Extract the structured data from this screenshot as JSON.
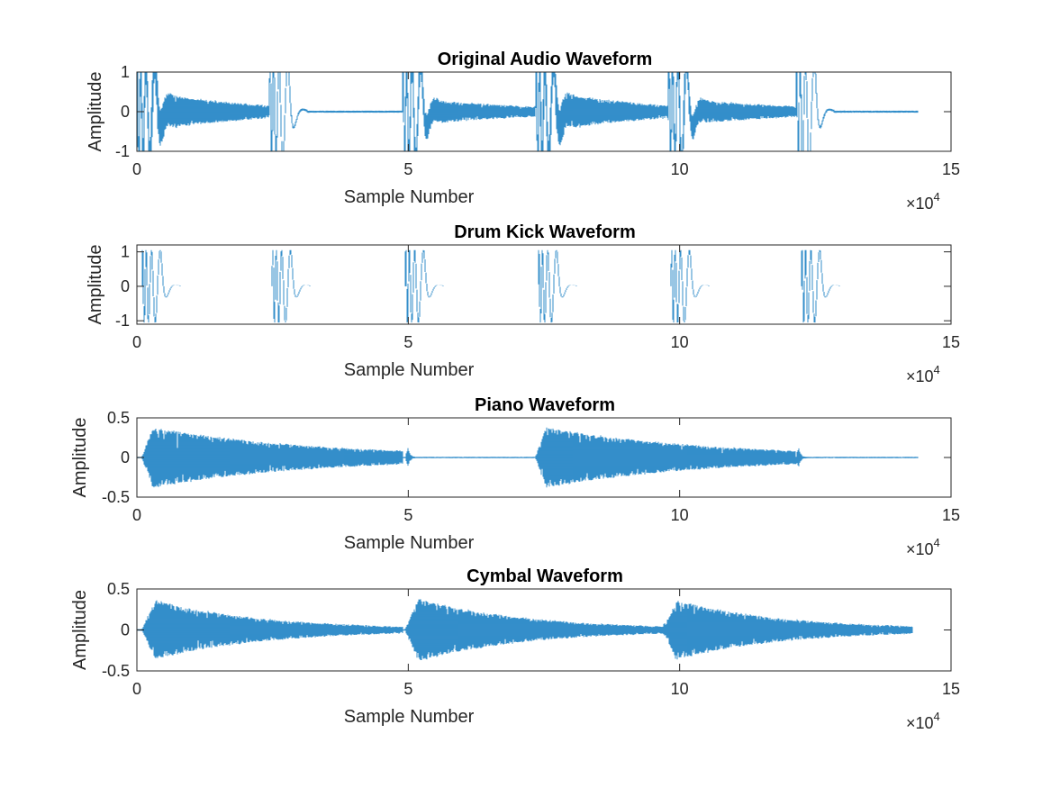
{
  "chart_data": [
    {
      "type": "line",
      "title": "Original Audio Waveform",
      "xlabel": "Sample Number",
      "ylabel": "Amplitude",
      "xlim": [
        0,
        150000
      ],
      "ylim": [
        -1,
        1
      ],
      "x_ticks": [
        0,
        50000,
        100000,
        150000
      ],
      "x_tick_labels": [
        "0",
        "5",
        "10",
        "15"
      ],
      "y_ticks": [
        -1,
        0,
        1
      ],
      "y_tick_labels": [
        "-1",
        "0",
        "1"
      ],
      "x_multiplier_base": "×10",
      "x_multiplier_exp": "4",
      "line_color": "#0072BD",
      "signal": {
        "sample_count": 144000,
        "bursts": [
          {
            "start": 0,
            "drum": 1.0,
            "tonal": 0.45,
            "tonal_decay": 55000
          },
          {
            "start": 24500,
            "drum": 1.0,
            "tonal": 0.08,
            "tonal_decay": 6000
          },
          {
            "start": 49000,
            "drum": 1.0,
            "tonal": 0.3,
            "tonal_decay": 60000
          },
          {
            "start": 73500,
            "drum": 1.0,
            "tonal": 0.45,
            "tonal_decay": 55000
          },
          {
            "start": 98000,
            "drum": 1.0,
            "tonal": 0.3,
            "tonal_decay": 60000
          },
          {
            "start": 121500,
            "drum": 1.0,
            "tonal": 0.08,
            "tonal_decay": 6000
          }
        ],
        "end": 144000
      }
    },
    {
      "type": "line",
      "title": "Drum Kick Waveform",
      "xlabel": "Sample Number",
      "ylabel": "Amplitude",
      "xlim": [
        0,
        150000
      ],
      "ylim": [
        -1.1,
        1.2
      ],
      "x_ticks": [
        0,
        50000,
        100000,
        150000
      ],
      "x_tick_labels": [
        "0",
        "5",
        "10",
        "15"
      ],
      "y_ticks": [
        -1,
        0,
        1
      ],
      "y_tick_labels": [
        "-1",
        "0",
        "1"
      ],
      "x_multiplier_base": "×10",
      "x_multiplier_exp": "4",
      "line_color": "#0072BD",
      "signal": {
        "sample_count": 144000,
        "kick_starts": [
          1000,
          25000,
          49500,
          74000,
          98500,
          122500
        ],
        "kick_amplitude": 1.05,
        "end": 144000
      }
    },
    {
      "type": "line",
      "title": "Piano Waveform",
      "xlabel": "Sample Number",
      "ylabel": "Amplitude",
      "xlim": [
        0,
        150000
      ],
      "ylim": [
        -0.5,
        0.5
      ],
      "x_ticks": [
        0,
        50000,
        100000,
        150000
      ],
      "x_tick_labels": [
        "0",
        "5",
        "10",
        "15"
      ],
      "y_ticks": [
        -0.5,
        0,
        0.5
      ],
      "y_tick_labels": [
        "-0.5",
        "0",
        "0.5"
      ],
      "x_multiplier_base": "×10",
      "x_multiplier_exp": "4",
      "line_color": "#0072BD",
      "signal": {
        "sample_count": 144000,
        "notes": [
          {
            "start": 1000,
            "amp": 0.38,
            "decay": 30000
          },
          {
            "start": 73500,
            "amp": 0.38,
            "decay": 30000
          }
        ],
        "blips": [
          {
            "at": 50000,
            "amp": 0.12
          },
          {
            "at": 122000,
            "amp": 0.12
          }
        ],
        "end": 144000
      }
    },
    {
      "type": "line",
      "title": "Cymbal Waveform",
      "xlabel": "Sample Number",
      "ylabel": "Amplitude",
      "xlim": [
        0,
        150000
      ],
      "ylim": [
        -0.5,
        0.5
      ],
      "x_ticks": [
        0,
        50000,
        100000,
        150000
      ],
      "x_tick_labels": [
        "0",
        "5",
        "10",
        "15"
      ],
      "y_ticks": [
        -0.5,
        0,
        0.5
      ],
      "y_tick_labels": [
        "-0.5",
        "0",
        "0.5"
      ],
      "x_multiplier_base": "×10",
      "x_multiplier_exp": "4",
      "line_color": "#0072BD",
      "signal": {
        "sample_count": 143000,
        "hits": [
          {
            "start": 1000,
            "amp": 0.36,
            "decay": 20000
          },
          {
            "start": 49500,
            "amp": 0.38,
            "decay": 20000
          },
          {
            "start": 97000,
            "amp": 0.36,
            "decay": 20000
          }
        ],
        "end": 143000
      }
    }
  ]
}
